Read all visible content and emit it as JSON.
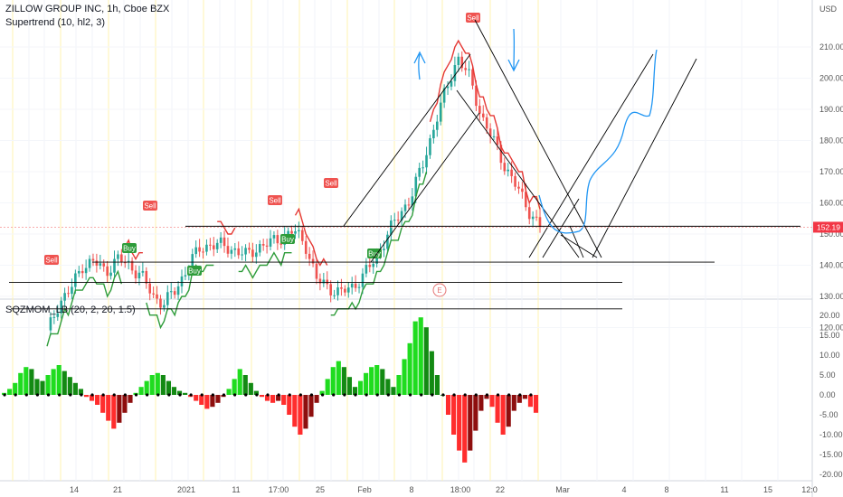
{
  "header": {
    "symbol_line": "ZILLOW GROUP INC, 1h, Cboe BZX",
    "supertrend_label": "Supertrend (10, hl2, 3)",
    "squeeze_label": "SQZMOM_LB (20, 2, 20, 1.5)"
  },
  "currency": "USD",
  "last_price": "152.19",
  "event_marker": "E",
  "colors": {
    "up": "#26a69a",
    "down": "#ef5350",
    "supertrend_up": "#2e9c3a",
    "supertrend_down": "#e53935",
    "mom_bright_green": "#1fdc1f",
    "mom_dark_green": "#138a13",
    "mom_bright_red": "#ff2d2d",
    "mom_dark_red": "#8e0e0e",
    "drawing_black": "#000000",
    "drawing_blue": "#2196f3",
    "price_tag": "#f23645"
  },
  "chart_data": [
    {
      "type": "line",
      "title": "ZILLOW GROUP INC, 1h, Cboe BZX",
      "ylabel": "USD",
      "ylim": [
        116,
        214
      ],
      "y_ticks": [
        "210.00",
        "200.00",
        "190.00",
        "180.00",
        "170.00",
        "160.00",
        "150.00",
        "140.00",
        "130.00",
        "120.00"
      ],
      "x_ticks": [
        "14",
        "21",
        "2021",
        "11",
        "17:00",
        "25",
        "Feb",
        "8",
        "18:00",
        "22",
        "Mar",
        "4",
        "8",
        "11",
        "15",
        "12:0"
      ],
      "close_approx": [
        {
          "x": "Jan 11",
          "y": 118
        },
        {
          "x": "Jan 12",
          "y": 128
        },
        {
          "x": "Jan 13",
          "y": 132
        },
        {
          "x": "Jan 14",
          "y": 140
        },
        {
          "x": "Jan 18",
          "y": 141
        },
        {
          "x": "Jan 19",
          "y": 138
        },
        {
          "x": "Jan 21",
          "y": 142
        },
        {
          "x": "Jan 22",
          "y": 140
        },
        {
          "x": "Jan 25",
          "y": 137
        },
        {
          "x": "Jan 26",
          "y": 130
        },
        {
          "x": "Jan 27",
          "y": 128
        },
        {
          "x": "Jan 28",
          "y": 132
        },
        {
          "x": "Jan 29",
          "y": 140
        },
        {
          "x": "Feb 1",
          "y": 145
        },
        {
          "x": "Feb 2",
          "y": 147
        },
        {
          "x": "Feb 3",
          "y": 146
        },
        {
          "x": "Feb 4",
          "y": 145
        },
        {
          "x": "Feb 5",
          "y": 143
        },
        {
          "x": "Feb 8",
          "y": 146
        },
        {
          "x": "Feb 9",
          "y": 147
        },
        {
          "x": "Feb 10",
          "y": 149
        },
        {
          "x": "Feb 11",
          "y": 151
        },
        {
          "x": "Feb 12",
          "y": 147
        },
        {
          "x": "Feb 15",
          "y": 135
        },
        {
          "x": "Feb 16",
          "y": 133
        },
        {
          "x": "Feb 17",
          "y": 131
        },
        {
          "x": "Feb 18",
          "y": 133
        },
        {
          "x": "Feb 19",
          "y": 137
        },
        {
          "x": "Feb 22",
          "y": 142
        },
        {
          "x": "Feb 23",
          "y": 150
        },
        {
          "x": "Feb 24",
          "y": 156
        },
        {
          "x": "Feb 25",
          "y": 162
        },
        {
          "x": "Feb 26",
          "y": 172
        },
        {
          "x": "Mar 1",
          "y": 185
        },
        {
          "x": "Mar 2",
          "y": 196
        },
        {
          "x": "Mar 3",
          "y": 207
        },
        {
          "x": "Mar 4",
          "y": 200
        },
        {
          "x": "Mar 5",
          "y": 188
        },
        {
          "x": "Mar 8",
          "y": 180
        },
        {
          "x": "Mar 9",
          "y": 172
        },
        {
          "x": "Mar 10",
          "y": 165
        },
        {
          "x": "Mar 11",
          "y": 158
        },
        {
          "x": "Mar 12",
          "y": 152.19
        }
      ],
      "signals": [
        {
          "label": "Sell",
          "price": 132
        },
        {
          "label": "Sell",
          "price": 143
        },
        {
          "label": "Buy",
          "price": 136
        },
        {
          "label": "Buy",
          "price": 127
        },
        {
          "label": "Sell",
          "price": 146
        },
        {
          "label": "Buy",
          "price": 139
        },
        {
          "label": "Sell",
          "price": 151
        },
        {
          "label": "Buy",
          "price": 128
        },
        {
          "label": "Sell",
          "price": 210
        }
      ],
      "horizontal_levels": [
        152.5,
        141,
        134.5,
        126
      ]
    },
    {
      "type": "bar",
      "title": "SQZMOM_LB (20, 2, 20, 1.5)",
      "ylim": [
        -21,
        21
      ],
      "y_ticks": [
        "20.00",
        "15.00",
        "10.00",
        "5.00",
        "0.00",
        "-5.00",
        "-10.00",
        "-15.00",
        "-20.00"
      ],
      "values": [
        0.5,
        1.5,
        3,
        5.5,
        7,
        6.5,
        4,
        3.5,
        5,
        6.5,
        7.5,
        6,
        4.5,
        3,
        1.5,
        -0.5,
        -1.5,
        -2.5,
        -4.5,
        -6.5,
        -8.5,
        -7,
        -4.5,
        -2,
        0.5,
        2,
        3.5,
        5,
        5.5,
        5,
        3.5,
        2,
        1,
        0.5,
        -0.5,
        -1.5,
        -2.5,
        -3.5,
        -3,
        -2,
        -0.5,
        1.5,
        4,
        6.5,
        5,
        3,
        1,
        -0.5,
        -1.5,
        -2,
        -1.5,
        -2.5,
        -5,
        -8,
        -10,
        -8.5,
        -5.5,
        -2,
        1,
        4,
        7,
        8.5,
        7,
        4.5,
        2,
        3.5,
        5.5,
        7,
        7.5,
        6.5,
        4,
        2,
        5,
        9,
        13,
        18.5,
        19.5,
        17,
        11,
        5,
        0,
        -5,
        -10,
        -14,
        -17,
        -14,
        -9,
        -4,
        -1,
        -3,
        -7,
        -10,
        -8,
        -4,
        -2,
        -1,
        -3,
        -4.5
      ]
    }
  ]
}
